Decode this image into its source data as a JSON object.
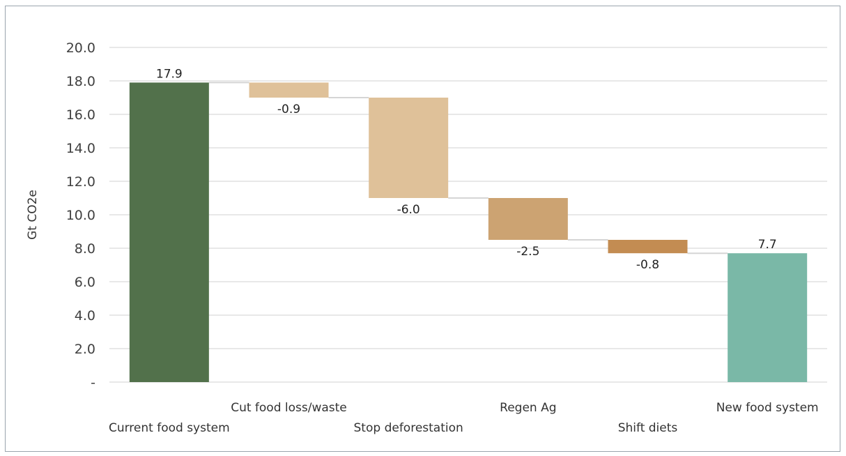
{
  "chart_data": {
    "type": "bar",
    "subtype": "waterfall",
    "ylabel": "Gt CO2e",
    "ylim": [
      0,
      20
    ],
    "yticks": [
      "-",
      "2.0",
      "4.0",
      "6.0",
      "8.0",
      "10.0",
      "12.0",
      "14.0",
      "16.0",
      "18.0",
      "20.0"
    ],
    "grid": true,
    "categories": [
      "Current food system",
      "Cut food loss/waste",
      "Stop deforestation",
      "Regen Ag",
      "Shift diets",
      "New food system"
    ],
    "values": [
      17.9,
      -0.9,
      -6.0,
      -2.5,
      -0.8,
      7.7
    ],
    "data_labels": [
      "17.9",
      "-0.9",
      "-6.0",
      "-2.5",
      "-0.8",
      "7.7"
    ],
    "bar_kinds": [
      "total",
      "delta",
      "delta",
      "delta",
      "delta",
      "total"
    ],
    "colors": [
      "#52714b",
      "#dfc199",
      "#dfc199",
      "#cca372",
      "#c38c52",
      "#7ab8a7"
    ],
    "connector_color": "#d5d5d5",
    "gridline_color": "#d9d9d9"
  }
}
